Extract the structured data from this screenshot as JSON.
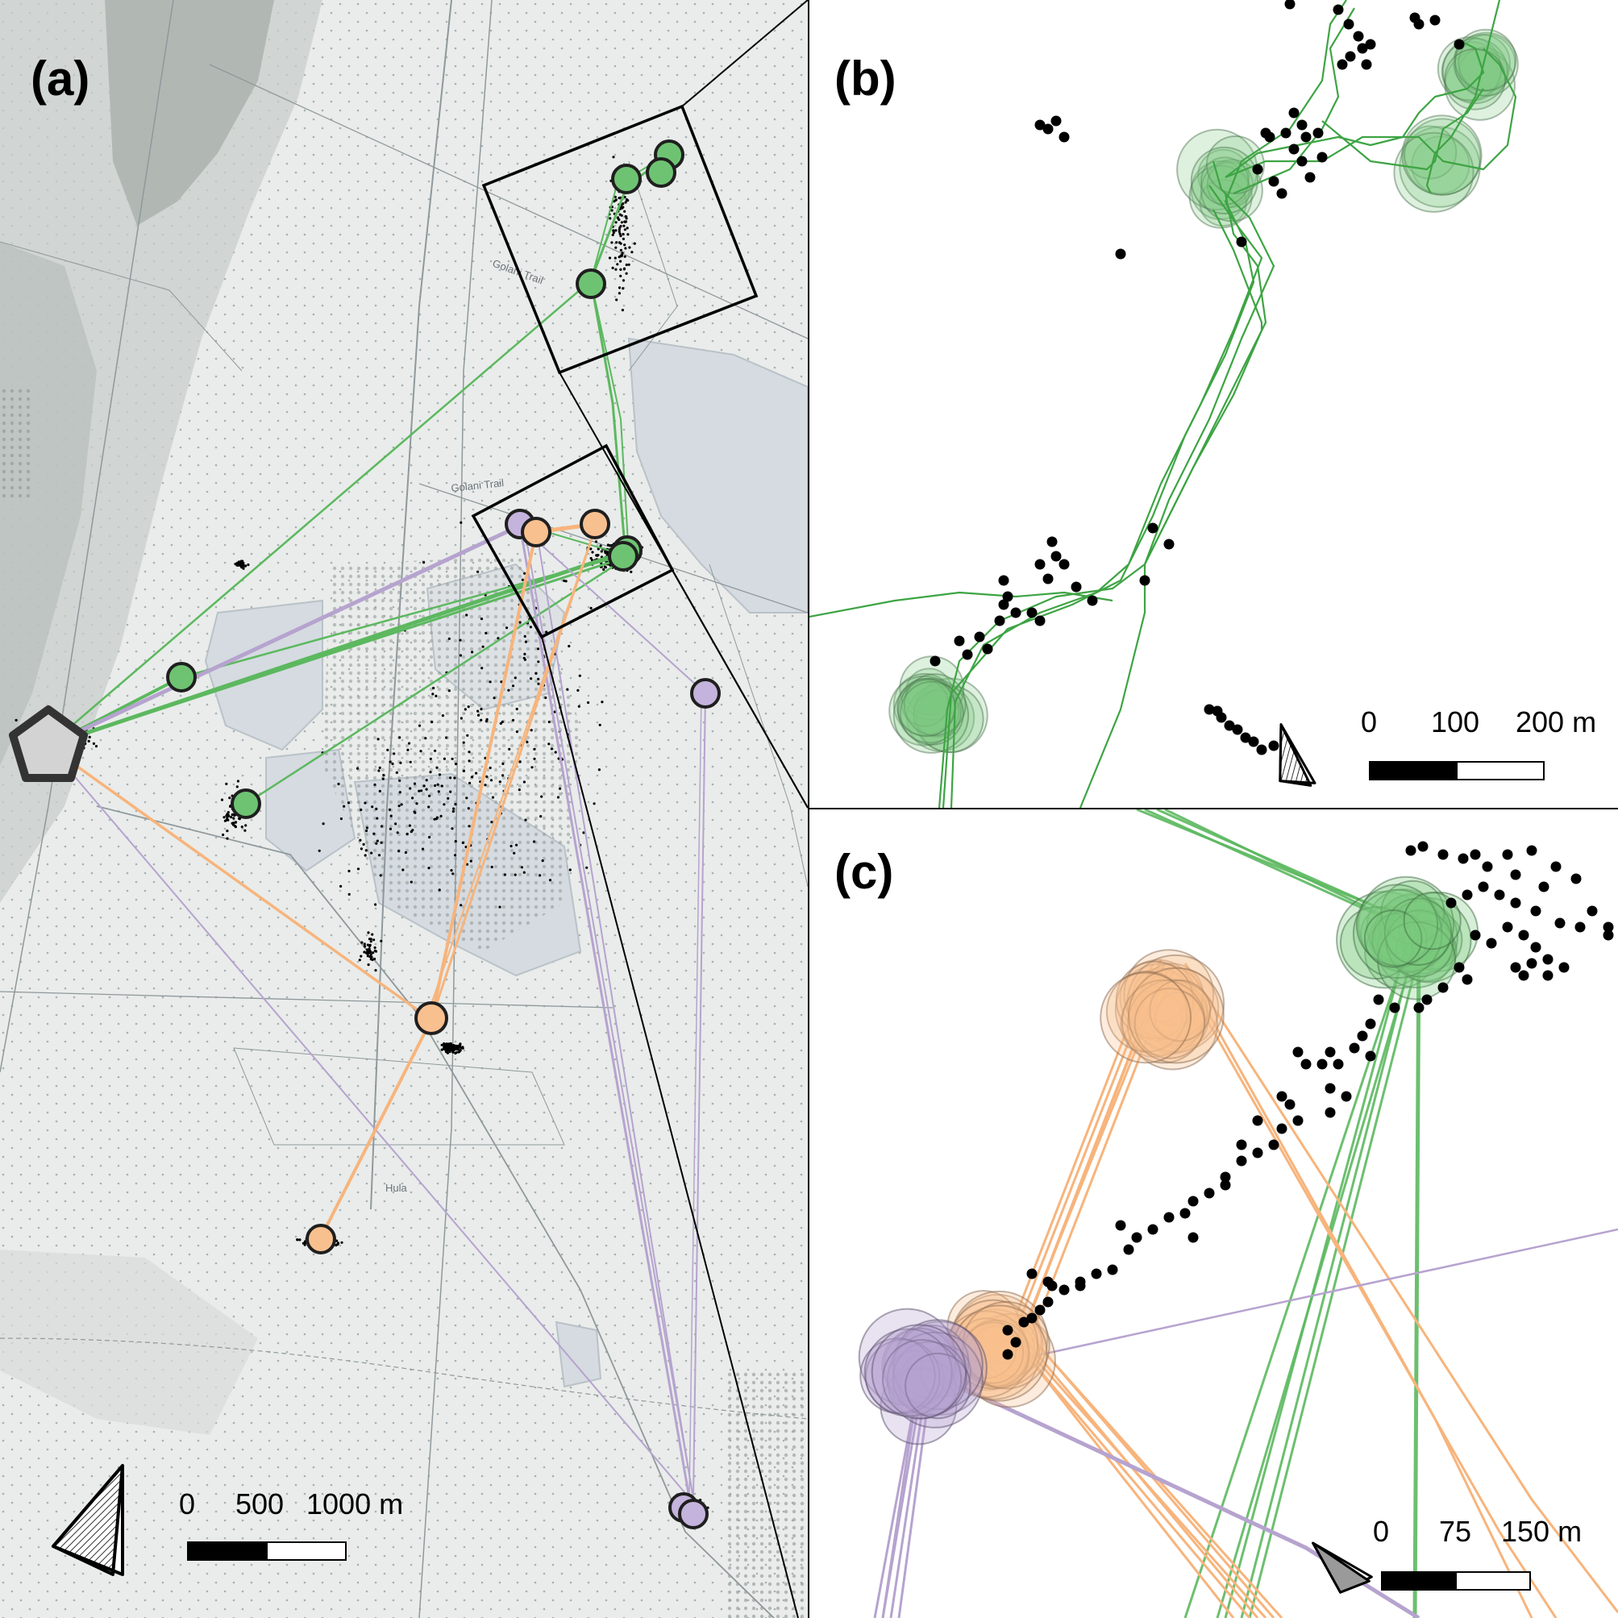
{
  "panels": {
    "a": {
      "label": "(a)"
    },
    "b": {
      "label": "(b)"
    },
    "c": {
      "label": "(c)"
    }
  },
  "scalebars": {
    "a": {
      "ticks": [
        "0",
        "500",
        "1000 m"
      ]
    },
    "b": {
      "ticks": [
        "0",
        "100",
        "200 m"
      ]
    },
    "c": {
      "ticks": [
        "0",
        "75",
        "150 m"
      ]
    }
  },
  "map_labels": {
    "road_golani": "Golani Trail",
    "village": "Hula",
    "road_north": "Golani Trail"
  },
  "colors": {
    "green": "#5cb85f",
    "green_fill": "#7cc97e",
    "orange": "#f7b47c",
    "purple": "#b6a3cf",
    "map_bg": "#e8ebe9",
    "water": "#d7dde2",
    "roost": "#d3d3d3"
  },
  "legend_icons": [
    "north-arrow-icon",
    "roost-pentagon-icon",
    "scale-bar-icon"
  ]
}
